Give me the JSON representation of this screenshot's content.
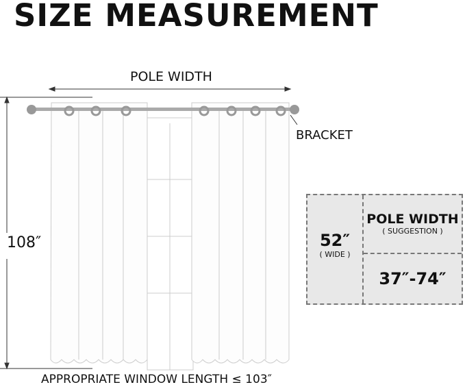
{
  "title": "SIZE MEASUREMENT",
  "pole_width_label": "POLE WIDTH",
  "bracket_label": "BRACKET",
  "length_label": "108″",
  "window_length_label": "APPROPRIATE WINDOW LENGTH ≤ 103″",
  "table": {
    "width_value": "52″",
    "width_note": "( WIDE )",
    "pole_header": "POLE WIDTH",
    "pole_note": "( SUGGESTION )",
    "pole_range": "37″-74″"
  }
}
